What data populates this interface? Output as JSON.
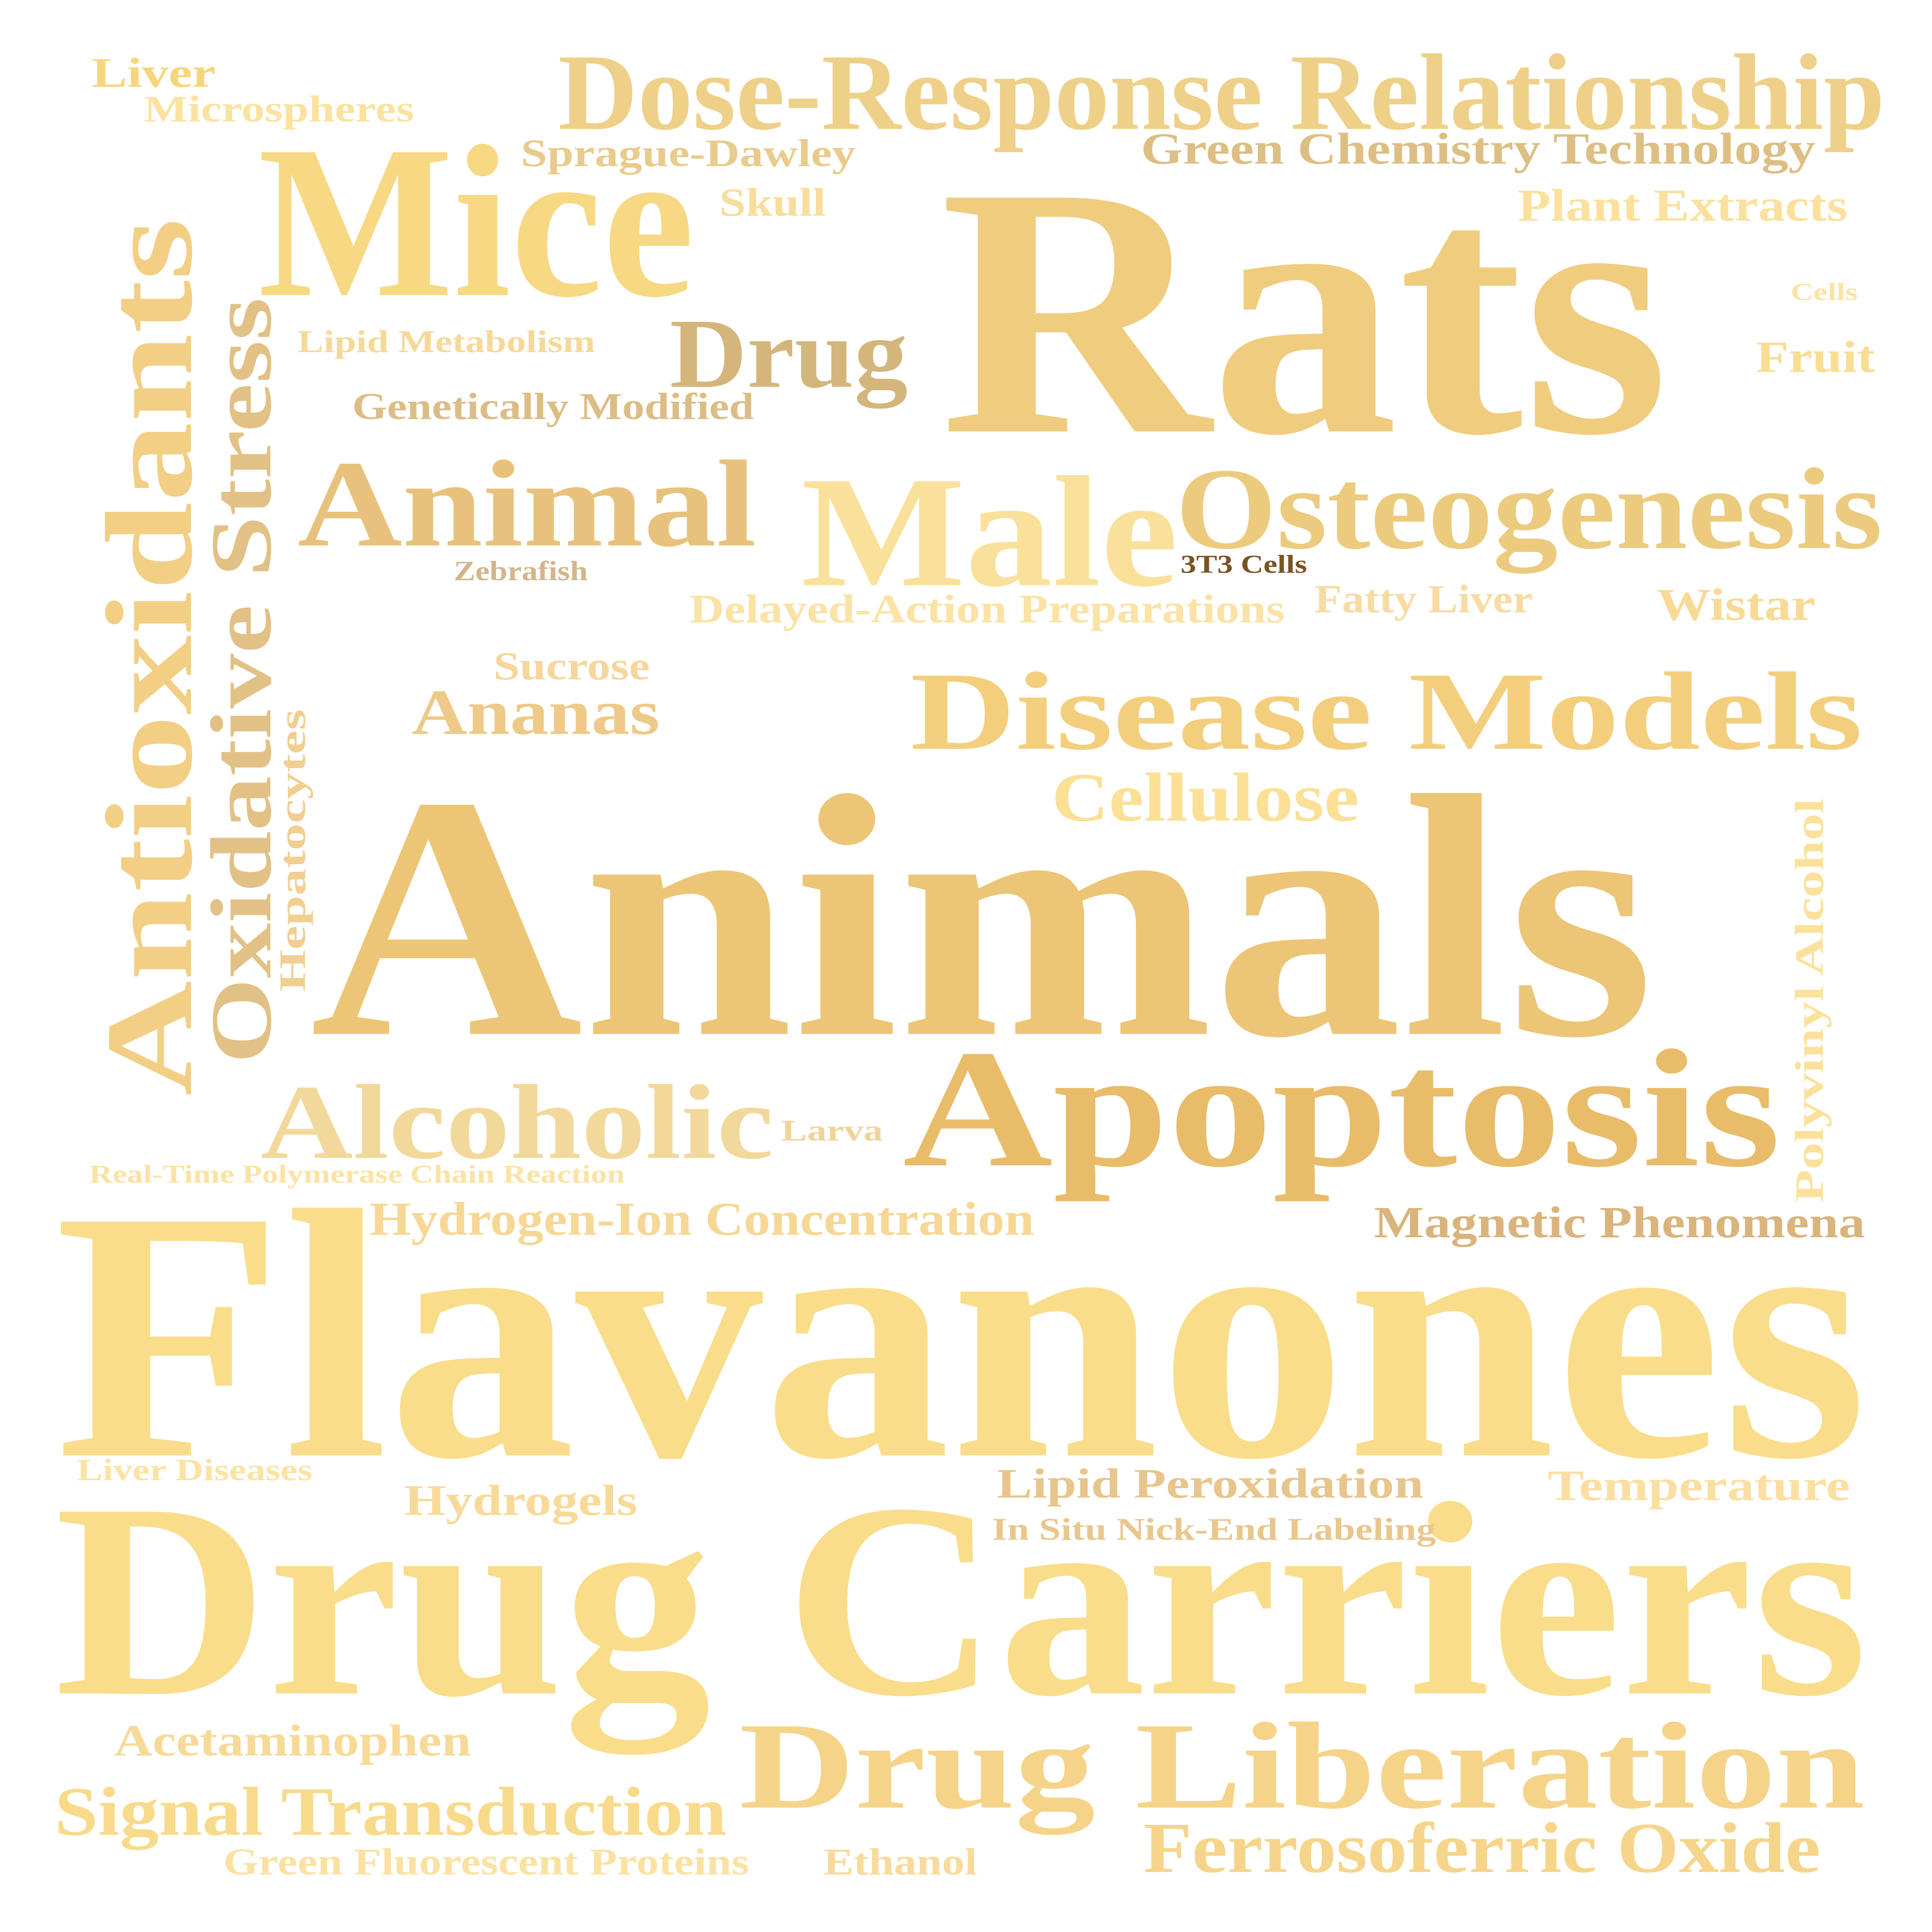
{
  "palette": {
    "background": "#ffffff",
    "light_gold": "#f9dd8a",
    "sand": "#f1d080",
    "wheat": "#f2d392",
    "amber": "#ecc170",
    "ochre": "#e6be78",
    "tan": "#d2b278",
    "khaki": "#d9b883",
    "brown": "#7a5224"
  },
  "words": [
    {
      "id": "rats",
      "text": "Rats",
      "color": "#f0cc7e"
    },
    {
      "id": "animals",
      "text": "Animals",
      "color": "#ecc576"
    },
    {
      "id": "flavanones",
      "text": "Flavanones",
      "color": "#f9dd8a"
    },
    {
      "id": "drug-carriers",
      "text": "Drug Carriers",
      "color": "#f9dd8a"
    },
    {
      "id": "mice",
      "text": "Mice",
      "color": "#f7d883"
    },
    {
      "id": "dose-response-relationship",
      "text": "Dose-Response Relationship",
      "color": "#efd088"
    },
    {
      "id": "antioxidants",
      "text": "Antioxidants",
      "color": "#f2cf85"
    },
    {
      "id": "oxidative-stress",
      "text": "Oxidative Stress",
      "color": "#e2c186"
    },
    {
      "id": "apoptosis",
      "text": "Apoptosis",
      "color": "#e9bc6a"
    },
    {
      "id": "drug-liberation",
      "text": "Drug Liberation",
      "color": "#f5d489"
    },
    {
      "id": "disease-models",
      "text": "Disease Models",
      "color": "#f3cf7d"
    },
    {
      "id": "osteogenesis",
      "text": "Osteogenesis",
      "color": "#eccb7e"
    },
    {
      "id": "male",
      "text": "Male",
      "color": "#fae19b"
    },
    {
      "id": "animal",
      "text": "Animal",
      "color": "#e8c27c"
    },
    {
      "id": "drug",
      "text": "Drug",
      "color": "#d4b57c"
    },
    {
      "id": "alcoholic",
      "text": "Alcoholic",
      "color": "#f2d89b"
    },
    {
      "id": "ferrosoferric-oxide",
      "text": "Ferrosoferric Oxide",
      "color": "#f6d58a"
    },
    {
      "id": "signal-transduction",
      "text": "Signal Transduction",
      "color": "#f8da8b"
    },
    {
      "id": "cellulose",
      "text": "Cellulose",
      "color": "#fbe096"
    },
    {
      "id": "ananas",
      "text": "Ananas",
      "color": "#efc987"
    },
    {
      "id": "hydrogen-ion-concentration",
      "text": "Hydrogen-Ion Concentration",
      "color": "#f6d794"
    },
    {
      "id": "magnetic-phenomena",
      "text": "Magnetic Phenomena",
      "color": "#d9b47c"
    },
    {
      "id": "green-chemistry-technology",
      "text": "Green Chemistry Technology",
      "color": "#ddbf84"
    },
    {
      "id": "plant-extracts",
      "text": "Plant Extracts",
      "color": "#fbe19d"
    },
    {
      "id": "fruit",
      "text": "Fruit",
      "color": "#f9dd93"
    },
    {
      "id": "wistar",
      "text": "Wistar",
      "color": "#f8da96"
    },
    {
      "id": "delayed-action-preparations",
      "text": "Delayed-Action Preparations",
      "color": "#fbe2a5"
    },
    {
      "id": "fatty-liver",
      "text": "Fatty Liver",
      "color": "#f8dba3"
    },
    {
      "id": "hepatocytes",
      "text": "Hepatocytes",
      "color": "#f1cf92"
    },
    {
      "id": "polyvinyl-alcohol",
      "text": "Polyvinyl Alcohol",
      "color": "#fbe19b"
    },
    {
      "id": "sucrose",
      "text": "Sucrose",
      "color": "#f7d69d"
    },
    {
      "id": "sprague-dawley",
      "text": "Sprague-Dawley",
      "color": "#e9cb8c"
    },
    {
      "id": "skull",
      "text": "Skull",
      "color": "#f8dd9b"
    },
    {
      "id": "genetically-modified",
      "text": "Genetically Modified",
      "color": "#dcbd86"
    },
    {
      "id": "lipid-metabolism",
      "text": "Lipid Metabolism",
      "color": "#f6d999"
    },
    {
      "id": "zebrafish",
      "text": "Zebrafish",
      "color": "#d4b58a"
    },
    {
      "id": "3t3-cells",
      "text": "3T3 Cells",
      "color": "#7a5224"
    },
    {
      "id": "liver",
      "text": "Liver",
      "color": "#f6d57e"
    },
    {
      "id": "microspheres",
      "text": "Microspheres",
      "color": "#fbe29f"
    },
    {
      "id": "cells",
      "text": "Cells",
      "color": "#fbe3a5"
    },
    {
      "id": "larva",
      "text": "Larva",
      "color": "#f1d39a"
    },
    {
      "id": "real-time-pcr",
      "text": "Real-Time Polymerase Chain Reaction",
      "color": "#fbe3a5"
    },
    {
      "id": "liver-diseases",
      "text": "Liver Diseases",
      "color": "#fbe3a3"
    },
    {
      "id": "hydrogels",
      "text": "Hydrogels",
      "color": "#f8da98"
    },
    {
      "id": "lipid-peroxidation",
      "text": "Lipid Peroxidation",
      "color": "#e8c58c"
    },
    {
      "id": "temperature",
      "text": "Temperature",
      "color": "#fbdfa2"
    },
    {
      "id": "in-situ-nick-end-labeling",
      "text": "In Situ Nick-End Labeling",
      "color": "#e9c78c"
    },
    {
      "id": "acetaminophen",
      "text": "Acetaminophen",
      "color": "#f7da97"
    },
    {
      "id": "green-fluorescent-proteins",
      "text": "Green Fluorescent Proteins",
      "color": "#fbe2a3"
    },
    {
      "id": "ethanol",
      "text": "Ethanol",
      "color": "#f8da9c"
    }
  ]
}
